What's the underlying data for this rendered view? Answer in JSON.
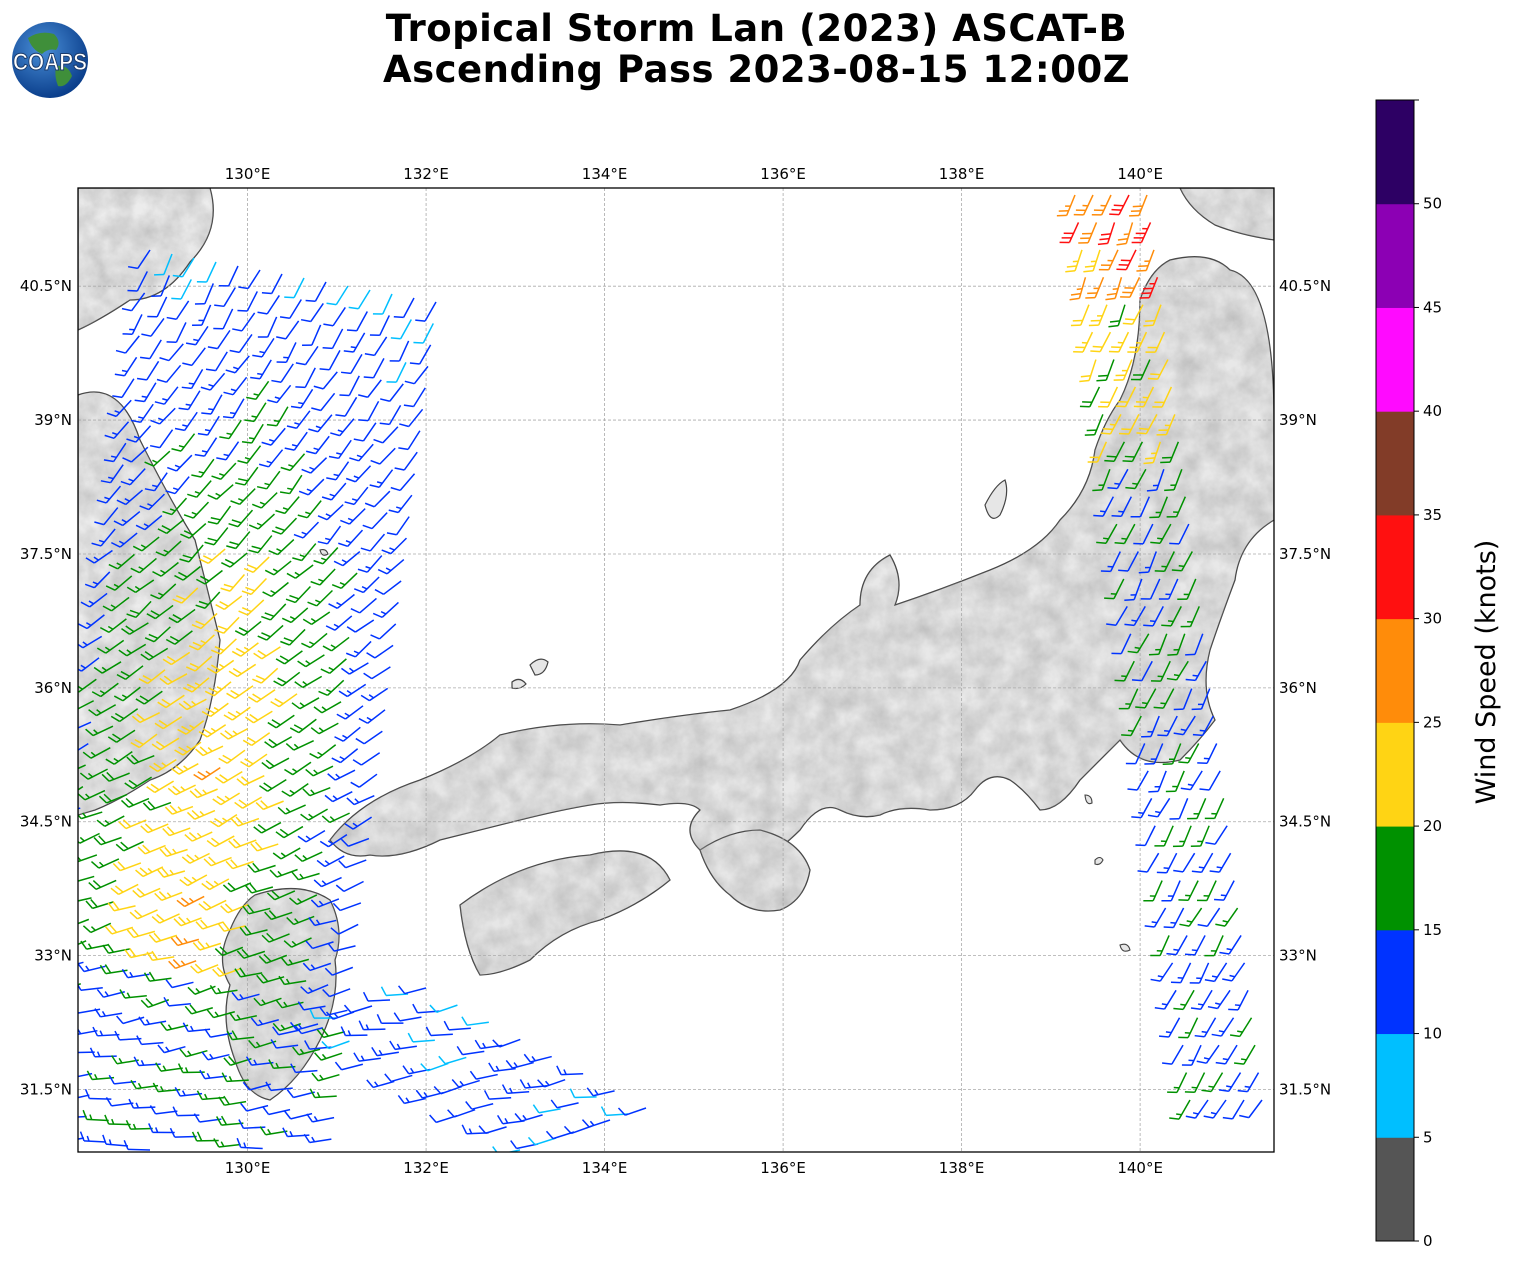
{
  "title_line1": "Tropical Storm Lan (2023) ASCAT-B",
  "title_line2": "Ascending Pass 2023-08-15 12:00Z",
  "logo_text": "COAPS",
  "map": {
    "lon_labels": [
      "130°E",
      "132°E",
      "134°E",
      "136°E",
      "138°E",
      "140°E"
    ],
    "lat_labels": [
      "40.5°N",
      "39°N",
      "37.5°N",
      "36°N",
      "34.5°N",
      "33°N",
      "31.5°N"
    ],
    "lon_values": [
      130,
      132,
      134,
      136,
      138,
      140
    ],
    "lat_values": [
      40.5,
      39,
      37.5,
      36,
      34.5,
      33,
      31.5
    ],
    "lon_range": [
      128.1,
      141.5
    ],
    "lat_range": [
      30.8,
      41.6
    ],
    "gridlines": true
  },
  "colorbar": {
    "label": "Wind Speed (knots)",
    "ticks": [
      "0",
      "5",
      "10",
      "15",
      "20",
      "25",
      "30",
      "35",
      "40",
      "45",
      "50"
    ],
    "bins": [
      {
        "min": 0,
        "max": 5,
        "color": "#555555"
      },
      {
        "min": 5,
        "max": 10,
        "color": "#00bfff"
      },
      {
        "min": 10,
        "max": 15,
        "color": "#0033ff"
      },
      {
        "min": 15,
        "max": 20,
        "color": "#009100"
      },
      {
        "min": 20,
        "max": 25,
        "color": "#ffd414"
      },
      {
        "min": 25,
        "max": 30,
        "color": "#ff8c0a"
      },
      {
        "min": 30,
        "max": 35,
        "color": "#ff1010"
      },
      {
        "min": 35,
        "max": 40,
        "color": "#823c28"
      },
      {
        "min": 40,
        "max": 45,
        "color": "#ff0aff"
      },
      {
        "min": 45,
        "max": 50,
        "color": "#8c00b4"
      },
      {
        "min": 50,
        "max": 55,
        "color": "#2d0064"
      }
    ]
  }
}
